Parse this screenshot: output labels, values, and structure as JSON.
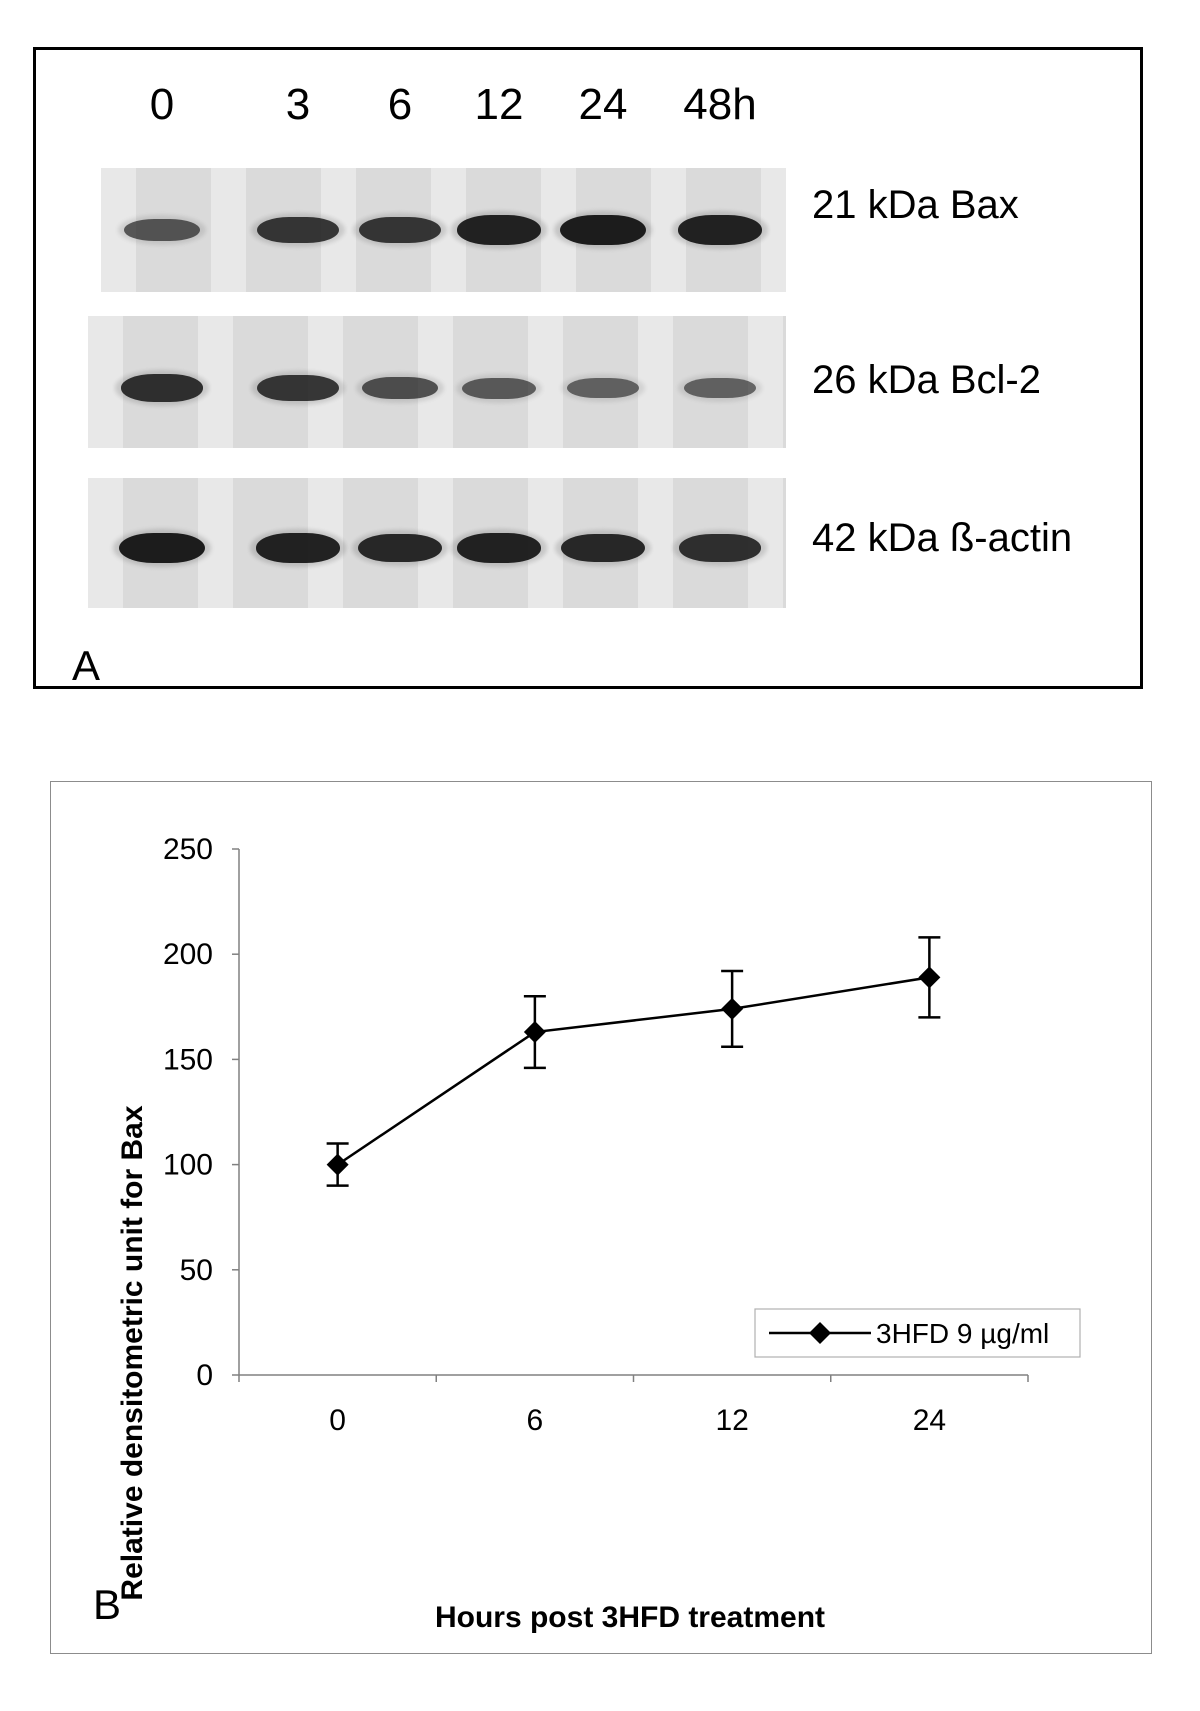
{
  "panel_a": {
    "letter": "A",
    "lanes": [
      "0",
      "3",
      "6",
      "12",
      "24",
      "48h"
    ],
    "blots": [
      {
        "label": "21 kDa Bax",
        "band_intensity": [
          0.55,
          0.8,
          0.8,
          0.95,
          1.0,
          0.95
        ]
      },
      {
        "label": "26 kDa Bcl-2",
        "band_intensity": [
          0.85,
          0.8,
          0.6,
          0.5,
          0.45,
          0.45
        ]
      },
      {
        "label": "42 kDa ß-actin",
        "band_intensity": [
          1.0,
          0.95,
          0.9,
          0.95,
          0.9,
          0.85
        ]
      }
    ]
  },
  "panel_b": {
    "letter": "B",
    "chart_data": {
      "type": "line",
      "x": [
        0,
        6,
        12,
        24
      ],
      "xticks": [
        "0",
        "6",
        "12",
        "24"
      ],
      "ylim": [
        0,
        250
      ],
      "yticks": [
        "0",
        "50",
        "100",
        "150",
        "200",
        "250"
      ],
      "xlabel": "Hours post 3HFD treatment",
      "ylabel": "Relative densitometric unit for Bax",
      "series": [
        {
          "name": "3HFD 9 µg/ml",
          "values": [
            100,
            163,
            174,
            189
          ],
          "error": [
            10,
            17,
            18,
            19
          ]
        }
      ],
      "legend_position": "bottom-right",
      "grid": false,
      "marker": "diamond",
      "color": "#000000"
    }
  }
}
